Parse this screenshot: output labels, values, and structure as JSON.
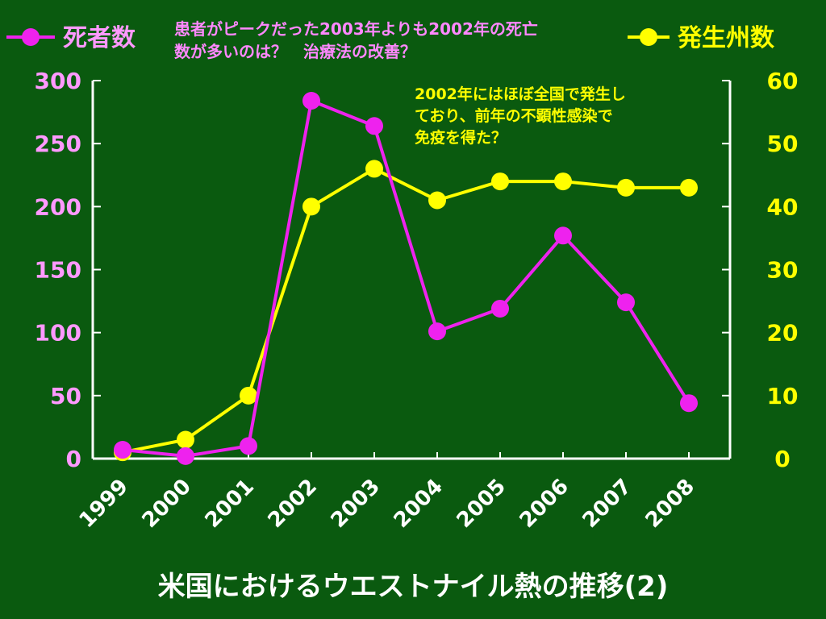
{
  "legend": {
    "left_label": "死者数",
    "right_label": "発生州数"
  },
  "annotations": {
    "top_lines": [
      "患者がピークだった2003年よりも2002年の死亡",
      "数が多いのは？　治療法の改善？"
    ],
    "mid_lines": [
      "2002年にはほぼ全国で発生し",
      "ており、前年の不顕性感染で",
      "免疫を得た？"
    ]
  },
  "title": "米国におけるウエストナイル熱の推移(2)",
  "colors": {
    "background": "#0a5a0f",
    "deaths": "#ee22ee",
    "states": "#ffff00",
    "left_axis_text": "#ff99ff",
    "right_axis_text": "#ffff00",
    "axis": "#ffffff"
  },
  "chart_data": {
    "type": "line",
    "categories": [
      "1999",
      "2000",
      "2001",
      "2002",
      "2003",
      "2004",
      "2005",
      "2006",
      "2007",
      "2008"
    ],
    "series": [
      {
        "name": "死者数",
        "axis": "left",
        "values": [
          7,
          2,
          10,
          284,
          264,
          101,
          119,
          177,
          124,
          44
        ]
      },
      {
        "name": "発生州数",
        "axis": "right",
        "values": [
          1,
          3,
          10,
          40,
          46,
          41,
          44,
          44,
          43,
          43
        ]
      }
    ],
    "y_left": {
      "min": 0,
      "max": 300,
      "ticks": [
        0,
        50,
        100,
        150,
        200,
        250,
        300
      ]
    },
    "y_right": {
      "min": 0,
      "max": 60,
      "ticks": [
        0,
        10,
        20,
        30,
        40,
        50,
        60
      ]
    },
    "grid": false
  }
}
